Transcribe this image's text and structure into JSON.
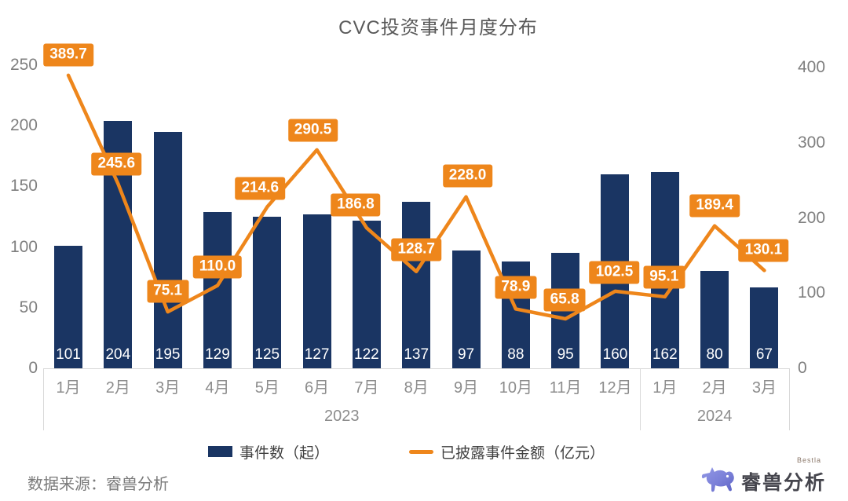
{
  "chart_data": {
    "type": "bar",
    "title": "CVC投资事件月度分布",
    "categories": [
      "1月",
      "2月",
      "3月",
      "4月",
      "5月",
      "6月",
      "7月",
      "8月",
      "9月",
      "10月",
      "11月",
      "12月",
      "1月",
      "2月",
      "3月"
    ],
    "year_groups": [
      {
        "label": "2023",
        "months": 12
      },
      {
        "label": "2024",
        "months": 3
      }
    ],
    "series": [
      {
        "name": "事件数（起）",
        "type": "bar",
        "y_axis": "left",
        "color": "#1A3563",
        "values": [
          101,
          204,
          195,
          129,
          125,
          127,
          122,
          137,
          97,
          88,
          95,
          160,
          162,
          80,
          67
        ]
      },
      {
        "name": "已披露事件金额（亿元）",
        "type": "line",
        "y_axis": "right",
        "color": "#EE861B",
        "values": [
          389.7,
          245.6,
          75.1,
          110.0,
          214.6,
          290.5,
          186.8,
          128.7,
          228.0,
          78.9,
          65.8,
          102.5,
          95.1,
          189.4,
          130.1
        ],
        "value_labels": [
          "389.7",
          "245.6",
          "75.1",
          "110.0",
          "214.6",
          "290.5",
          "186.8",
          "128.7",
          "228.0",
          "78.9",
          "65.8",
          "102.5",
          "95.1",
          "189.4",
          "130.1"
        ]
      }
    ],
    "left_axis": {
      "ticks": [
        "0",
        "50",
        "100",
        "150",
        "200",
        "250"
      ],
      "min": 0,
      "max": 250
    },
    "right_axis": {
      "ticks": [
        "0",
        "100",
        "200",
        "300",
        "400"
      ],
      "min": 0,
      "max": 400
    },
    "grid": false,
    "legend_position": "bottom"
  },
  "footer": {
    "source": "数据来源：睿兽分析"
  },
  "brand": {
    "name": "睿兽分析",
    "tag": "Bestla"
  },
  "colors": {
    "bar": "#1A3563",
    "line": "#EE861B",
    "title_text": "#595959",
    "axis_text": "#7f7f7f",
    "category_text": "#8c8c8c",
    "band_border": "#d9d9d9",
    "legend_text": "#404040",
    "bar_value_text": "#ffffff",
    "chip_text": "#ffffff"
  }
}
